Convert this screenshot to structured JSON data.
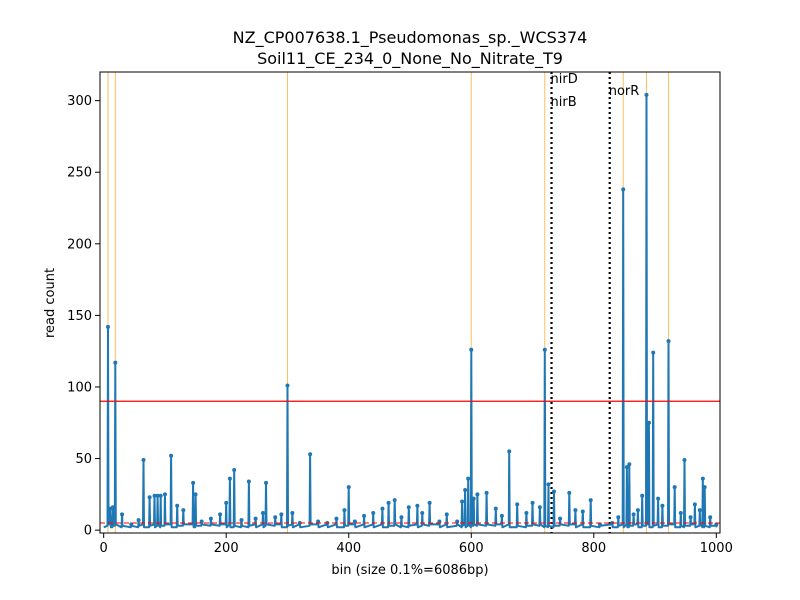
{
  "chart_data": {
    "type": "line",
    "title_line1": "NZ_CP007638.1_Pseudomonas_sp._WCS374",
    "title_line2": "Soil11_CE_234_0_None_No_Nitrate_T9",
    "xlabel": "bin (size 0.1%=6086bp)",
    "ylabel": "read count",
    "xlim": [
      -6,
      1006
    ],
    "ylim": [
      -2,
      320
    ],
    "xticks": [
      0,
      200,
      400,
      600,
      800,
      1000
    ],
    "yticks": [
      0,
      50,
      100,
      150,
      200,
      250,
      300
    ],
    "grid": false,
    "series_color": "#1f77b4",
    "threshold_line": {
      "y": 90,
      "color": "#ff0000"
    },
    "baseline_line": {
      "y": 5,
      "color": "#ff0000",
      "style": "dashed"
    },
    "highlight_color": "#ffbe5c",
    "highlight_bins": [
      7,
      19,
      300,
      600,
      720,
      848,
      886,
      922
    ],
    "gene_markers": [
      {
        "x": 731,
        "labels": [
          "nirD",
          "nirB"
        ]
      },
      {
        "x": 826,
        "labels": [
          "norR"
        ]
      }
    ],
    "peaks": [
      {
        "x": 7,
        "y": 142
      },
      {
        "x": 19,
        "y": 117
      },
      {
        "x": 11,
        "y": 15
      },
      {
        "x": 15,
        "y": 16
      },
      {
        "x": 30,
        "y": 11
      },
      {
        "x": 45,
        "y": 4
      },
      {
        "x": 57,
        "y": 7
      },
      {
        "x": 65,
        "y": 49
      },
      {
        "x": 75,
        "y": 23
      },
      {
        "x": 83,
        "y": 24
      },
      {
        "x": 88,
        "y": 24
      },
      {
        "x": 93,
        "y": 24
      },
      {
        "x": 100,
        "y": 25
      },
      {
        "x": 110,
        "y": 52
      },
      {
        "x": 120,
        "y": 17
      },
      {
        "x": 130,
        "y": 14
      },
      {
        "x": 146,
        "y": 33
      },
      {
        "x": 150,
        "y": 25
      },
      {
        "x": 160,
        "y": 6
      },
      {
        "x": 175,
        "y": 8
      },
      {
        "x": 190,
        "y": 11
      },
      {
        "x": 200,
        "y": 19
      },
      {
        "x": 206,
        "y": 36
      },
      {
        "x": 213,
        "y": 42
      },
      {
        "x": 225,
        "y": 7
      },
      {
        "x": 237,
        "y": 34
      },
      {
        "x": 248,
        "y": 8
      },
      {
        "x": 260,
        "y": 12
      },
      {
        "x": 265,
        "y": 33
      },
      {
        "x": 280,
        "y": 9
      },
      {
        "x": 290,
        "y": 11
      },
      {
        "x": 300,
        "y": 101
      },
      {
        "x": 308,
        "y": 12
      },
      {
        "x": 320,
        "y": 5
      },
      {
        "x": 337,
        "y": 53
      },
      {
        "x": 350,
        "y": 6
      },
      {
        "x": 365,
        "y": 5
      },
      {
        "x": 380,
        "y": 8
      },
      {
        "x": 393,
        "y": 14
      },
      {
        "x": 400,
        "y": 30
      },
      {
        "x": 410,
        "y": 6
      },
      {
        "x": 425,
        "y": 10
      },
      {
        "x": 440,
        "y": 12
      },
      {
        "x": 455,
        "y": 15
      },
      {
        "x": 465,
        "y": 19
      },
      {
        "x": 475,
        "y": 21
      },
      {
        "x": 486,
        "y": 9
      },
      {
        "x": 498,
        "y": 16
      },
      {
        "x": 512,
        "y": 17
      },
      {
        "x": 520,
        "y": 12
      },
      {
        "x": 532,
        "y": 19
      },
      {
        "x": 548,
        "y": 6
      },
      {
        "x": 560,
        "y": 11
      },
      {
        "x": 577,
        "y": 6
      },
      {
        "x": 585,
        "y": 20
      },
      {
        "x": 590,
        "y": 28
      },
      {
        "x": 595,
        "y": 36
      },
      {
        "x": 600,
        "y": 126
      },
      {
        "x": 604,
        "y": 22
      },
      {
        "x": 610,
        "y": 25
      },
      {
        "x": 625,
        "y": 26
      },
      {
        "x": 640,
        "y": 15
      },
      {
        "x": 650,
        "y": 10
      },
      {
        "x": 662,
        "y": 55
      },
      {
        "x": 675,
        "y": 18
      },
      {
        "x": 690,
        "y": 12
      },
      {
        "x": 700,
        "y": 19
      },
      {
        "x": 712,
        "y": 16
      },
      {
        "x": 720,
        "y": 126
      },
      {
        "x": 726,
        "y": 32
      },
      {
        "x": 735,
        "y": 27
      },
      {
        "x": 745,
        "y": 8
      },
      {
        "x": 760,
        "y": 26
      },
      {
        "x": 770,
        "y": 14
      },
      {
        "x": 782,
        "y": 13
      },
      {
        "x": 795,
        "y": 21
      },
      {
        "x": 810,
        "y": 4
      },
      {
        "x": 830,
        "y": 5
      },
      {
        "x": 840,
        "y": 9
      },
      {
        "x": 848,
        "y": 238
      },
      {
        "x": 854,
        "y": 44
      },
      {
        "x": 858,
        "y": 46
      },
      {
        "x": 865,
        "y": 11
      },
      {
        "x": 872,
        "y": 14
      },
      {
        "x": 879,
        "y": 24
      },
      {
        "x": 886,
        "y": 304
      },
      {
        "x": 890,
        "y": 75
      },
      {
        "x": 897,
        "y": 124
      },
      {
        "x": 905,
        "y": 22
      },
      {
        "x": 912,
        "y": 17
      },
      {
        "x": 922,
        "y": 132
      },
      {
        "x": 932,
        "y": 30
      },
      {
        "x": 942,
        "y": 12
      },
      {
        "x": 948,
        "y": 49
      },
      {
        "x": 958,
        "y": 9
      },
      {
        "x": 965,
        "y": 18
      },
      {
        "x": 973,
        "y": 14
      },
      {
        "x": 978,
        "y": 36
      },
      {
        "x": 981,
        "y": 30
      },
      {
        "x": 990,
        "y": 9
      },
      {
        "x": 1000,
        "y": 4
      }
    ],
    "baseline_value": 2
  }
}
